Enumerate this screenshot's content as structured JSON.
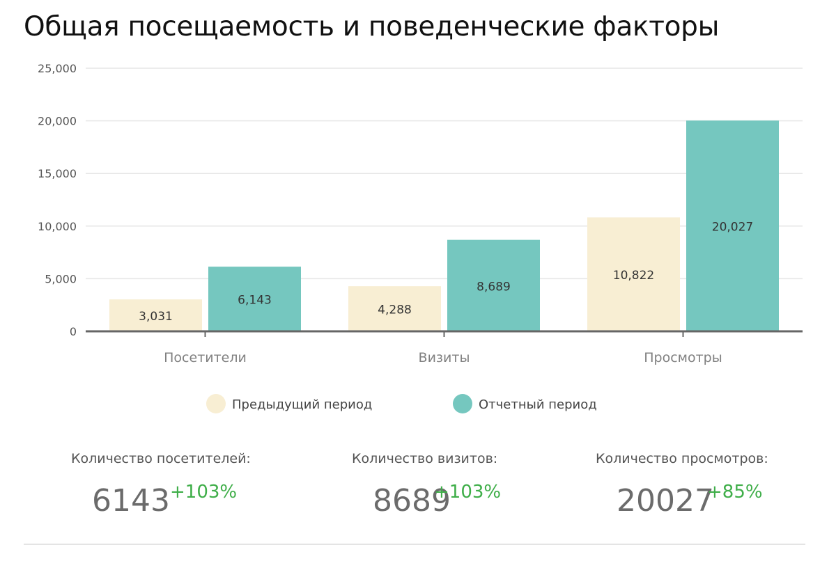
{
  "chart_data": {
    "type": "bar",
    "title": "Общая посещаемость и поведенческие факторы",
    "categories": [
      "Посетители",
      "Визиты",
      "Просмотры"
    ],
    "series": [
      {
        "name": "Предыдущий период",
        "color": "#f8eed3",
        "values": [
          3031,
          4288,
          10822
        ],
        "labels": [
          "3,031",
          "4,288",
          "10,822"
        ]
      },
      {
        "name": "Отчетный период",
        "color": "#75c7bf",
        "values": [
          6143,
          8689,
          20027
        ],
        "labels": [
          "6,143",
          "8,689",
          "20,027"
        ]
      }
    ],
    "ylim": [
      0,
      25000
    ],
    "yticks": [
      0,
      5000,
      10000,
      15000,
      20000,
      25000
    ],
    "ytick_labels": [
      "0",
      "5,000",
      "10,000",
      "15,000",
      "20,000",
      "25,000"
    ],
    "grid": true,
    "legend_position": "bottom",
    "xlabel": "",
    "ylabel": ""
  },
  "stats": [
    {
      "label": "Количество посетителей:",
      "value": "6143",
      "change": "+103%"
    },
    {
      "label": "Количество визитов:",
      "value": "8689",
      "change": "+103%"
    },
    {
      "label": "Количество просмотров:",
      "value": "20027",
      "change": "+85%"
    }
  ],
  "colors": {
    "increase": "#3fae49",
    "axis": "#666666",
    "grid": "#e6e6e6"
  }
}
